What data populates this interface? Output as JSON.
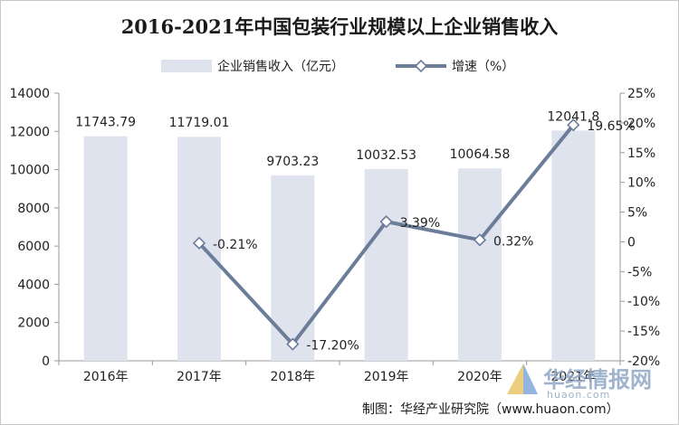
{
  "chart_data": {
    "type": "bar+line",
    "title": "2016-2021年中国包装行业规模以上企业销售收入",
    "categories": [
      "2016年",
      "2017年",
      "2018年",
      "2019年",
      "2020年",
      "2021年"
    ],
    "series": [
      {
        "name": "企业销售收入（亿元）",
        "type": "bar",
        "axis": "left",
        "color": "#dfe3ed",
        "values": [
          11743.79,
          11719.01,
          9703.23,
          10032.53,
          10064.58,
          12041.8
        ],
        "labels": [
          "11743.79",
          "11719.01",
          "9703.23",
          "10032.53",
          "10064.58",
          "12041.8"
        ]
      },
      {
        "name": "增速（%）",
        "type": "line",
        "axis": "right",
        "color": "#6b7d99",
        "x": [
          "2017年",
          "2018年",
          "2019年",
          "2020年",
          "2021年"
        ],
        "values": [
          -0.21,
          -17.2,
          3.39,
          0.32,
          19.65
        ],
        "labels": [
          "-0.21%",
          "-17.20%",
          "3.39%",
          "0.32%",
          "19.65%"
        ]
      }
    ],
    "y_left": {
      "min": 0,
      "max": 14000,
      "step": 2000,
      "ticks": [
        "0",
        "2000",
        "4000",
        "6000",
        "8000",
        "10000",
        "12000",
        "14000"
      ]
    },
    "y_right": {
      "min": -20,
      "max": 25,
      "step": 5,
      "ticks": [
        "-20%",
        "-15%",
        "-10%",
        "-5%",
        "0",
        "5%",
        "10%",
        "15%",
        "20%",
        "25%"
      ]
    },
    "legend_position": "top-center",
    "grid": false
  },
  "source": "制图：华经产业研究院（www.huaon.com）",
  "watermark": {
    "text": "华经情报网",
    "url": "huaon.com"
  }
}
